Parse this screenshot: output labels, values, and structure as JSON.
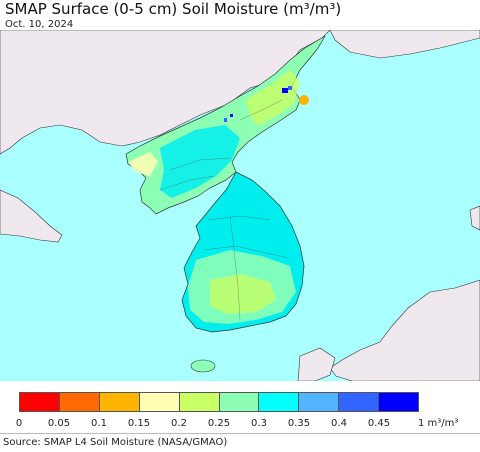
{
  "header": {
    "title": "SMAP Surface (0-5 cm) Soil Moisture (m³/m³)",
    "date": "Oct. 10, 2024"
  },
  "legend": {
    "colors": [
      "#ff0000",
      "#ff6a00",
      "#ffb400",
      "#ffffb4",
      "#c8ff64",
      "#8cffb4",
      "#00ffff",
      "#50b4ff",
      "#3264ff",
      "#0000ff"
    ],
    "ticks": [
      "0",
      "0.05",
      "0.1",
      "0.15",
      "0.2",
      "0.25",
      "0.3",
      "0.35",
      "0.4",
      "0.45"
    ],
    "unit": "1 m³/m³"
  },
  "footer": {
    "source": "Source: SMAP L4 Soil Moisture (NASA/GMAO)"
  },
  "map": {
    "sea_color": "#aaffff",
    "foreign_land_color": "#efe9ef",
    "dominant_land_color": "#00eeee"
  }
}
